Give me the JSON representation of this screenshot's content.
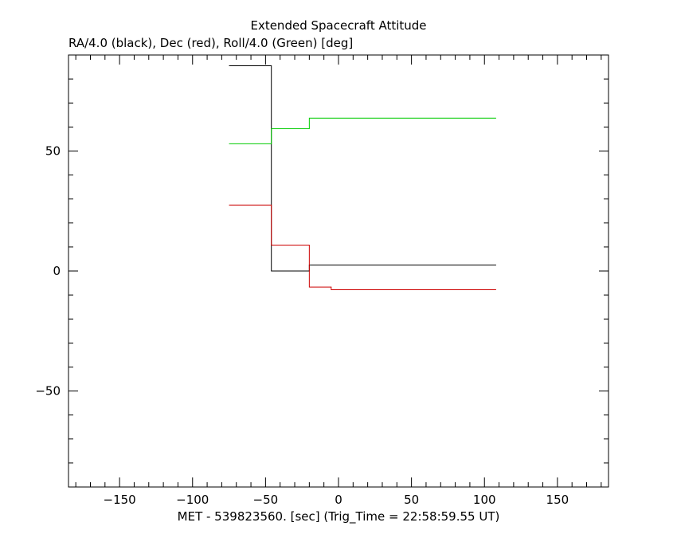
{
  "chart_data": {
    "type": "line",
    "title": "Extended Spacecraft Attitude",
    "subtitle": "RA/4.0 (black), Dec (red), Roll/4.0 (Green) [deg]",
    "xlabel": "MET - 539823560. [sec] (Trig_Time = 22:58:59.55 UT)",
    "ylabel": "",
    "xlim": [
      -185,
      185
    ],
    "ylim": [
      -90,
      90
    ],
    "xticks": [
      -150,
      -100,
      -50,
      0,
      50,
      100,
      150
    ],
    "yticks": [
      -50,
      0,
      50
    ],
    "grid": false,
    "step": true,
    "series": [
      {
        "color": "#000000",
        "x": [
          -75,
          -46,
          -20,
          108
        ],
        "y": [
          85.5,
          0.0,
          2.5,
          2.5
        ]
      },
      {
        "color": "#cc0000",
        "x": [
          -75,
          -46,
          -20,
          -5,
          108
        ],
        "y": [
          27.5,
          10.8,
          -6.7,
          -7.8,
          -7.8
        ]
      },
      {
        "color": "#00cc00",
        "x": [
          -75,
          -46,
          -20,
          108
        ],
        "y": [
          53.0,
          59.3,
          63.7,
          63.7
        ]
      }
    ]
  }
}
